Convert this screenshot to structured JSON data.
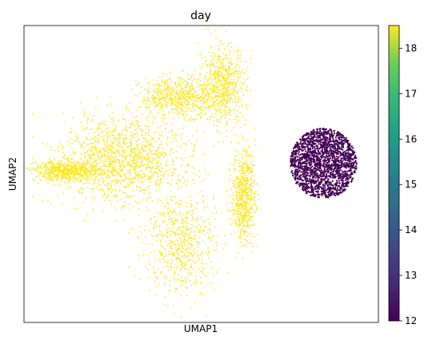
{
  "chart_data": {
    "type": "scatter",
    "title": "day",
    "xlabel": "UMAP1",
    "ylabel": "UMAP2",
    "color_variable": "day",
    "colormap": "viridis",
    "colorbar": {
      "min": 12,
      "max": 18.5,
      "ticks": [
        12,
        13,
        14,
        15,
        16,
        17,
        18
      ],
      "tick_labels": [
        "12",
        "13",
        "14",
        "15",
        "16",
        "17",
        "18"
      ]
    },
    "axes": {
      "xticks": false,
      "yticks": false,
      "grid": false
    },
    "series": [
      {
        "name": "day 12 cells",
        "color_value": 12,
        "color": "#440154",
        "shape": "round cluster",
        "center": [
          0.845,
          0.536
        ],
        "radius": [
          0.094,
          0.118
        ]
      },
      {
        "name": "day 18 cells",
        "color_value": 18.5,
        "color": "#fde725",
        "shape": "branching manifold",
        "regions": [
          {
            "center": [
              0.28,
              0.55
            ],
            "radius": [
              0.16,
              0.13
            ]
          },
          {
            "center": [
              0.44,
              0.76
            ],
            "radius": [
              0.1,
              0.06
            ]
          },
          {
            "center": [
              0.56,
              0.8
            ],
            "radius": [
              0.06,
              0.12
            ]
          },
          {
            "center": [
              0.12,
              0.51
            ],
            "radius": [
              0.08,
              0.03
            ]
          },
          {
            "center": [
              0.44,
              0.27
            ],
            "radius": [
              0.09,
              0.16
            ]
          },
          {
            "center": [
              0.62,
              0.43
            ],
            "radius": [
              0.03,
              0.14
            ]
          }
        ]
      }
    ]
  }
}
